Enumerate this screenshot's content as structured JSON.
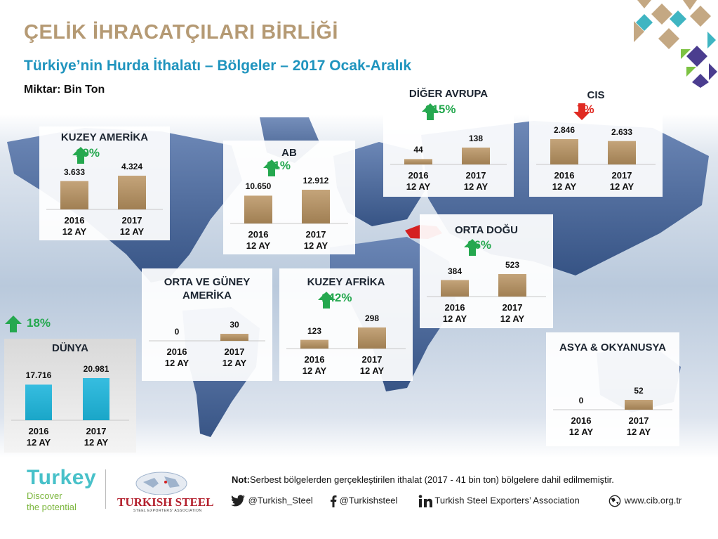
{
  "header": {
    "title": "ÇELİK İHRACATÇILARI BİRLİĞİ",
    "subtitle": "Türkiye’nin Hurda İthalatı – Bölgeler – 2017 Ocak-Aralık",
    "unit": "Miktar: Bin Ton"
  },
  "colors": {
    "title": "#b59a74",
    "subtitle": "#1f94be",
    "bar_region": "#a07f53",
    "bar_world": "#1aa6c8",
    "increase": "#25a84f",
    "decrease": "#e02a22"
  },
  "chart_data": [
    {
      "id": "kuzey_amerika",
      "type": "bar",
      "title": "KUZEY AMERİKA",
      "change": {
        "direction": "up",
        "label": "19%"
      },
      "categories": [
        "2016 12 AY",
        "2017 12 AY"
      ],
      "values": [
        3633,
        4324
      ],
      "value_labels": [
        "3.633",
        "4.324"
      ]
    },
    {
      "id": "ab",
      "type": "bar",
      "title": "AB",
      "change": {
        "direction": "up",
        "label": "21%"
      },
      "categories": [
        "2016 12 AY",
        "2017 12 AY"
      ],
      "values": [
        10650,
        12912
      ],
      "value_labels": [
        "10.650",
        "12.912"
      ]
    },
    {
      "id": "diger_avrupa",
      "type": "bar",
      "title": "DİĞER AVRUPA",
      "change": {
        "direction": "up",
        "label": "215%"
      },
      "categories": [
        "2016 12 AY",
        "2017 12 AY"
      ],
      "values": [
        44,
        138
      ],
      "value_labels": [
        "44",
        "138"
      ]
    },
    {
      "id": "cis",
      "type": "bar",
      "title": "CIS",
      "change": {
        "direction": "down",
        "label": "7%"
      },
      "categories": [
        "2016 12 AY",
        "2017 12 AY"
      ],
      "values": [
        2846,
        2633
      ],
      "value_labels": [
        "2.846",
        "2.633"
      ]
    },
    {
      "id": "orta_dogu",
      "type": "bar",
      "title": "ORTA DOĞU",
      "change": {
        "direction": "up",
        "label": "36%"
      },
      "categories": [
        "2016 12 AY",
        "2017 12 AY"
      ],
      "values": [
        384,
        523
      ],
      "value_labels": [
        "384",
        "523"
      ]
    },
    {
      "id": "orta_guney_amerika",
      "type": "bar",
      "title": "ORTA VE GÜNEY AMERİKA",
      "change": null,
      "categories": [
        "2016 12 AY",
        "2017 12 AY"
      ],
      "values": [
        0,
        30
      ],
      "value_labels": [
        "0",
        "30"
      ]
    },
    {
      "id": "kuzey_afrika",
      "type": "bar",
      "title": "KUZEY AFRİKA",
      "change": {
        "direction": "up",
        "label": "142%"
      },
      "categories": [
        "2016 12 AY",
        "2017 12 AY"
      ],
      "values": [
        123,
        298
      ],
      "value_labels": [
        "123",
        "298"
      ]
    },
    {
      "id": "asya_okyanusya",
      "type": "bar",
      "title": "ASYA & OKYANUSYA",
      "change": null,
      "categories": [
        "2016 12 AY",
        "2017 12 AY"
      ],
      "values": [
        0,
        52
      ],
      "value_labels": [
        "0",
        "52"
      ]
    },
    {
      "id": "dunya",
      "type": "bar",
      "title": "DÜNYA",
      "change": {
        "direction": "up",
        "label": "18%"
      },
      "categories": [
        "2016 12 AY",
        "2017 12 AY"
      ],
      "values": [
        17716,
        20981
      ],
      "value_labels": [
        "17.716",
        "20.981"
      ]
    }
  ],
  "footer": {
    "note_label": "Not:",
    "note_text": "Serbest bölgelerden gerçekleştirilen ithalat (2017 - 41 bin ton) bölgelere dahil edilmemiştir.",
    "twitter": "@Turkish_Steel",
    "facebook": "@Turkishsteel",
    "linkedin": "Turkish Steel Exporters’ Association",
    "website": "www.cib.org.tr",
    "brand_turkey": "Turkey",
    "brand_tagline_1": "Discover",
    "brand_tagline_2": "the potential",
    "brand_steel": "TURKISH STEEL",
    "brand_steel_sub": "STEEL EXPORTERS' ASSOCIATION"
  }
}
